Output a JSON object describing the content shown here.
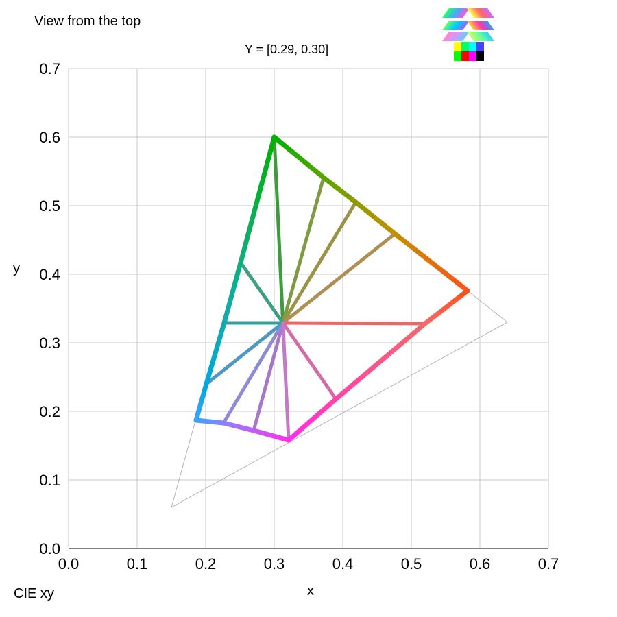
{
  "header": {
    "view_label": "View from the top",
    "space_label": "CIE xy"
  },
  "view_selector": {
    "icon": "view-selector-icon",
    "swatches": [
      "#ffff00",
      "#00ff66",
      "#00ffff",
      "#4444ff",
      "#00ff00",
      "#ff0000",
      "#ff00ff",
      "#000000"
    ]
  },
  "chart_data": {
    "type": "scatter",
    "subtitle": "Y = [0.29, 0.30]",
    "xlabel": "x",
    "ylabel": "y",
    "xlim": [
      0.0,
      0.7
    ],
    "ylim": [
      0.0,
      0.7
    ],
    "x_ticks": [
      "0.0",
      "0.1",
      "0.2",
      "0.3",
      "0.4",
      "0.5",
      "0.6",
      "0.7"
    ],
    "y_ticks": [
      "0.0",
      "0.1",
      "0.2",
      "0.3",
      "0.4",
      "0.5",
      "0.6",
      "0.7"
    ],
    "grid": true,
    "white_point": {
      "x": 0.3127,
      "y": 0.329
    },
    "reference_gamut": [
      {
        "x": 0.64,
        "y": 0.33
      },
      {
        "x": 0.15,
        "y": 0.06
      },
      {
        "x": 0.3,
        "y": 0.6
      }
    ],
    "boundary": [
      {
        "x": 0.3,
        "y": 0.6,
        "color": "#00b000"
      },
      {
        "x": 0.372,
        "y": 0.541,
        "color": "#5aa400"
      },
      {
        "x": 0.419,
        "y": 0.505,
        "color": "#8e9a00"
      },
      {
        "x": 0.476,
        "y": 0.459,
        "color": "#c49000"
      },
      {
        "x": 0.582,
        "y": 0.376,
        "color": "#ff5018"
      },
      {
        "x": 0.52,
        "y": 0.328,
        "color": "#f26a6a"
      },
      {
        "x": 0.39,
        "y": 0.218,
        "color": "#ff44a8"
      },
      {
        "x": 0.321,
        "y": 0.158,
        "color": "#ff2cf0"
      },
      {
        "x": 0.27,
        "y": 0.172,
        "color": "#c060f2"
      },
      {
        "x": 0.226,
        "y": 0.183,
        "color": "#8c80ff"
      },
      {
        "x": 0.186,
        "y": 0.187,
        "color": "#3da2ff"
      },
      {
        "x": 0.201,
        "y": 0.24,
        "color": "#00a8dc"
      },
      {
        "x": 0.227,
        "y": 0.329,
        "color": "#10aab0"
      },
      {
        "x": 0.251,
        "y": 0.417,
        "color": "#0fae7e"
      }
    ],
    "rays": [
      {
        "x": 0.3,
        "y": 0.6,
        "color": "#3f9a3c"
      },
      {
        "x": 0.372,
        "y": 0.541,
        "color": "#7e9a42"
      },
      {
        "x": 0.419,
        "y": 0.505,
        "color": "#9a9246"
      },
      {
        "x": 0.476,
        "y": 0.459,
        "color": "#ae9055"
      },
      {
        "x": 0.52,
        "y": 0.328,
        "color": "#e46a6a"
      },
      {
        "x": 0.39,
        "y": 0.218,
        "color": "#d46aa8"
      },
      {
        "x": 0.27,
        "y": 0.172,
        "color": "#a778c8"
      },
      {
        "x": 0.226,
        "y": 0.183,
        "color": "#8c8cd6"
      },
      {
        "x": 0.201,
        "y": 0.24,
        "color": "#4f98c4"
      },
      {
        "x": 0.227,
        "y": 0.329,
        "color": "#3a9c9a"
      },
      {
        "x": 0.251,
        "y": 0.417,
        "color": "#3e9e82"
      },
      {
        "x": 0.321,
        "y": 0.158,
        "color": "#c07ac6"
      }
    ]
  }
}
